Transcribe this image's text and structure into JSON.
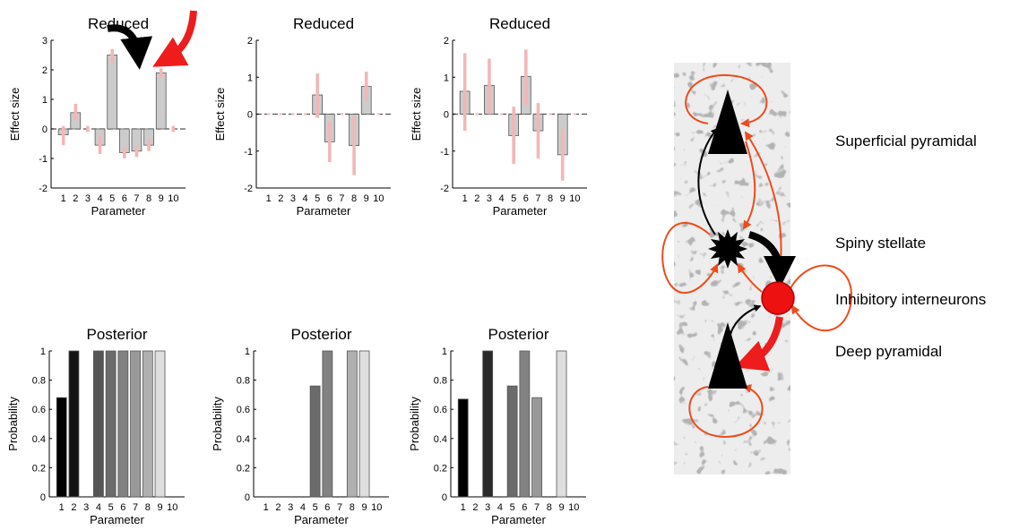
{
  "chart_data": [
    {
      "type": "bar",
      "title": "Reduced",
      "xlabel": "Parameter",
      "ylabel": "Effect size",
      "categories": [
        "1",
        "2",
        "3",
        "4",
        "5",
        "6",
        "7",
        "8",
        "9",
        "10"
      ],
      "values": [
        -0.2,
        0.55,
        0.0,
        -0.55,
        2.5,
        -0.8,
        -0.75,
        -0.55,
        1.9,
        0.0
      ],
      "error_low": [
        -0.55,
        0.3,
        -0.1,
        -0.85,
        2.2,
        -1.0,
        -0.95,
        -0.75,
        1.75,
        -0.1
      ],
      "error_high": [
        0.1,
        0.85,
        0.1,
        -0.25,
        2.7,
        -0.6,
        -0.55,
        -0.35,
        2.05,
        0.1
      ],
      "ylim": [
        -2,
        3
      ],
      "yticks": [
        -2,
        -1,
        0,
        1,
        2,
        3
      ]
    },
    {
      "type": "bar",
      "title": "Reduced",
      "xlabel": "Parameter",
      "ylabel": "Effect size",
      "categories": [
        "1",
        "2",
        "3",
        "4",
        "5",
        "6",
        "7",
        "8",
        "9",
        "10"
      ],
      "values": [
        0.0,
        0.0,
        0.0,
        0.0,
        0.52,
        -0.75,
        0.0,
        -0.85,
        0.75,
        0.0
      ],
      "error_low": [
        -0.02,
        -0.02,
        -0.02,
        -0.02,
        -0.1,
        -1.3,
        -0.02,
        -1.65,
        0.35,
        -0.02
      ],
      "error_high": [
        0.02,
        0.02,
        0.02,
        0.02,
        1.1,
        -0.2,
        0.02,
        -0.05,
        1.15,
        0.02
      ],
      "ylim": [
        -2,
        2
      ],
      "yticks": [
        -2,
        -1,
        0,
        1,
        2
      ]
    },
    {
      "type": "bar",
      "title": "Reduced",
      "xlabel": "Parameter",
      "ylabel": "Effect size",
      "categories": [
        "1",
        "2",
        "3",
        "4",
        "5",
        "6",
        "7",
        "8",
        "9",
        "10"
      ],
      "values": [
        0.62,
        0.0,
        0.78,
        0.0,
        -0.58,
        1.02,
        -0.45,
        0.0,
        -1.1,
        0.0
      ],
      "error_low": [
        -0.45,
        -0.02,
        0.0,
        -0.02,
        -1.35,
        0.25,
        -1.2,
        -0.02,
        -1.8,
        -0.02
      ],
      "error_high": [
        1.65,
        0.02,
        1.5,
        0.02,
        0.2,
        1.75,
        0.3,
        0.02,
        -0.4,
        0.02
      ],
      "ylim": [
        -2,
        2
      ],
      "yticks": [
        -2,
        -1,
        0,
        1,
        2
      ]
    },
    {
      "type": "bar",
      "title": "Posterior",
      "xlabel": "Parameter",
      "ylabel": "Probability",
      "categories": [
        "1",
        "2",
        "3",
        "4",
        "5",
        "6",
        "7",
        "8",
        "9",
        "10"
      ],
      "values": [
        0.68,
        1.0,
        0.0,
        1.0,
        1.0,
        1.0,
        1.0,
        1.0,
        1.0,
        0.0
      ],
      "bar_colors": [
        "#000000",
        "#141414",
        "#2a2a2a",
        "#555555",
        "#6b6b6b",
        "#828282",
        "#999999",
        "#b0b0b0",
        "#dedede",
        "#f0f0f0"
      ],
      "ylim": [
        0,
        1
      ],
      "yticks": [
        0,
        0.2,
        0.4,
        0.6,
        0.8,
        1
      ]
    },
    {
      "type": "bar",
      "title": "Posterior",
      "xlabel": "Parameter",
      "ylabel": "Probability",
      "categories": [
        "1",
        "2",
        "3",
        "4",
        "5",
        "6",
        "7",
        "8",
        "9",
        "10"
      ],
      "values": [
        0.0,
        0.0,
        0.0,
        0.0,
        0.76,
        1.0,
        0.0,
        1.0,
        1.0,
        0.0
      ],
      "bar_colors": [
        "#000000",
        "#141414",
        "#2a2a2a",
        "#555555",
        "#6b6b6b",
        "#828282",
        "#999999",
        "#b0b0b0",
        "#dedede",
        "#f0f0f0"
      ],
      "ylim": [
        0,
        1
      ],
      "yticks": [
        0,
        0.2,
        0.4,
        0.6,
        0.8,
        1
      ]
    },
    {
      "type": "bar",
      "title": "Posterior",
      "xlabel": "Parameter",
      "ylabel": "Probability",
      "categories": [
        "1",
        "2",
        "3",
        "4",
        "5",
        "6",
        "7",
        "8",
        "9",
        "10"
      ],
      "values": [
        0.67,
        0.0,
        1.0,
        0.0,
        0.76,
        1.0,
        0.68,
        0.0,
        1.0,
        0.0
      ],
      "bar_colors": [
        "#000000",
        "#141414",
        "#2a2a2a",
        "#555555",
        "#6b6b6b",
        "#828282",
        "#999999",
        "#b0b0b0",
        "#dedede",
        "#f0f0f0"
      ],
      "ylim": [
        0,
        1
      ],
      "yticks": [
        0,
        0.2,
        0.4,
        0.6,
        0.8,
        1
      ]
    }
  ],
  "colors": {
    "bar_fill": "#cccccc",
    "error_bar": "#f4b6b6",
    "red_arrow": "#ee1c1c",
    "connection": "#ee4b1c",
    "interneuron": "#ee1111",
    "panel_bg": "#ededed"
  },
  "diagram": {
    "labels": {
      "superficial": "Superficial pyramidal",
      "spiny": "Spiny stellate",
      "inhibitory": "Inhibitory interneurons",
      "deep": "Deep pyramidal"
    }
  }
}
